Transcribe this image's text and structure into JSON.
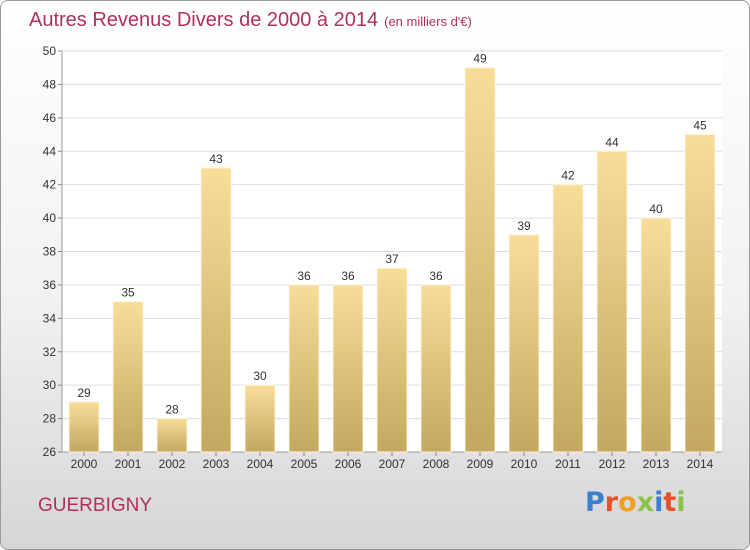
{
  "header": {
    "title": "Autres Revenus Divers de 2000 à 2014",
    "unit": "(en milliers d'€)"
  },
  "footer": {
    "commune": "GUERBIGNY",
    "logo_letters": [
      "P",
      "r",
      "o",
      "x",
      "i",
      "t",
      "i"
    ]
  },
  "colors": {
    "title": "#b03060",
    "bar_top": "#f8dd9a",
    "bar_bottom": "#c4a75f",
    "logo_letters": [
      "#3a7fd0",
      "#e5502a",
      "#f0a020",
      "#8bc34a",
      "#3a7fd0",
      "#e5502a",
      "#8bc34a"
    ]
  },
  "chart_data": {
    "type": "bar",
    "title": "Autres Revenus Divers de 2000 à 2014",
    "subtitle": "(en milliers d'€)",
    "categories": [
      "2000",
      "2001",
      "2002",
      "2003",
      "2004",
      "2005",
      "2006",
      "2007",
      "2008",
      "2009",
      "2010",
      "2011",
      "2012",
      "2013",
      "2014"
    ],
    "values": [
      29,
      35,
      28,
      43,
      30,
      36,
      36,
      37,
      36,
      49,
      39,
      42,
      44,
      40,
      45
    ],
    "ylim": [
      26,
      50
    ],
    "yticks": [
      26,
      28,
      30,
      32,
      34,
      36,
      38,
      40,
      42,
      44,
      46,
      48,
      50
    ],
    "grid": true,
    "legend": "none"
  }
}
